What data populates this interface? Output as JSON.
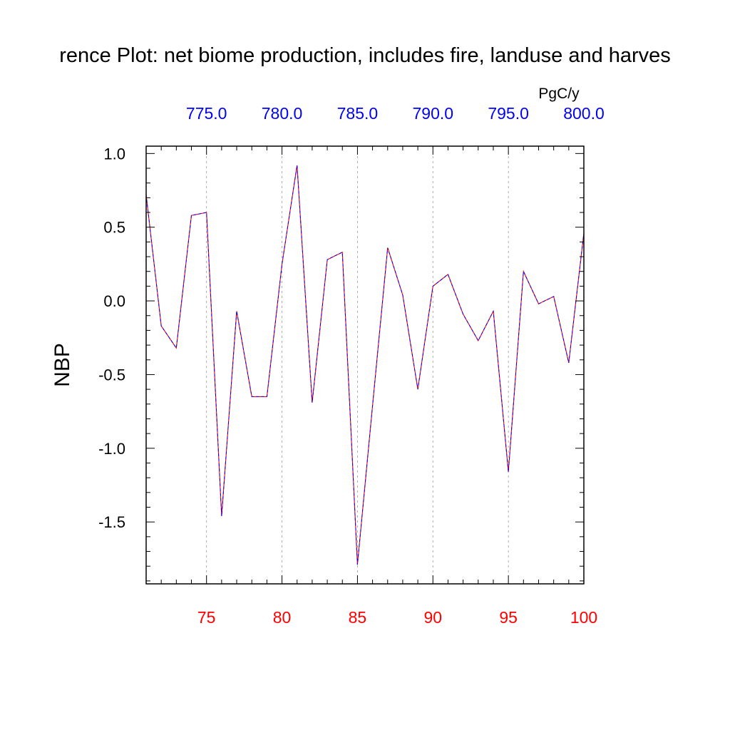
{
  "chart_data": {
    "type": "line",
    "title": "rence Plot: net biome production, includes fire, landuse and harves",
    "ylabel": "NBP",
    "top_axis_units": "PgC/y",
    "xlim": [
      71,
      100
    ],
    "ylim": [
      -1.92,
      1.05
    ],
    "x_ticks": [
      75,
      80,
      85,
      90,
      95,
      100
    ],
    "x_tick_labels": [
      "75",
      "80",
      "85",
      "90",
      "95",
      "100"
    ],
    "top_tick_labels": [
      "775.0",
      "780.0",
      "785.0",
      "790.0",
      "795.0",
      "800.0"
    ],
    "y_ticks": [
      1.0,
      0.5,
      0.0,
      -0.5,
      -1.0,
      -1.5
    ],
    "y_tick_labels": [
      "1.0",
      "0.5",
      "0.0",
      "-0.5",
      "-1.0",
      "-1.5"
    ],
    "grid": "vertical dashed",
    "x": [
      71,
      72,
      73,
      74,
      75,
      76,
      77,
      78,
      79,
      80,
      81,
      82,
      83,
      84,
      85,
      86,
      87,
      88,
      89,
      90,
      91,
      92,
      93,
      94,
      95,
      96,
      97,
      98,
      99,
      100
    ],
    "series": [
      {
        "color": "#ff0000",
        "style": "solid",
        "values": [
          0.72,
          -0.17,
          -0.32,
          0.58,
          0.6,
          -1.46,
          -0.07,
          -0.65,
          -0.65,
          0.25,
          0.92,
          -0.69,
          0.28,
          0.33,
          -1.79,
          -0.71,
          0.36,
          0.04,
          -0.6,
          0.1,
          0.18,
          -0.09,
          -0.27,
          -0.07,
          -1.16,
          0.2,
          -0.02,
          0.03,
          -0.42,
          0.46
        ]
      },
      {
        "color": "#0000ff",
        "style": "dashed",
        "values": [
          0.72,
          -0.17,
          -0.32,
          0.58,
          0.6,
          -1.46,
          -0.07,
          -0.65,
          -0.65,
          0.25,
          0.92,
          -0.69,
          0.28,
          0.33,
          -1.79,
          -0.71,
          0.36,
          0.04,
          -0.6,
          0.1,
          0.18,
          -0.09,
          -0.27,
          -0.07,
          -1.16,
          0.2,
          -0.02,
          0.03,
          -0.42,
          0.46
        ]
      }
    ],
    "colors": {
      "bottom_axis_labels": "#ff0000",
      "top_axis_labels": "#0000ff",
      "grid": "#999999"
    }
  }
}
